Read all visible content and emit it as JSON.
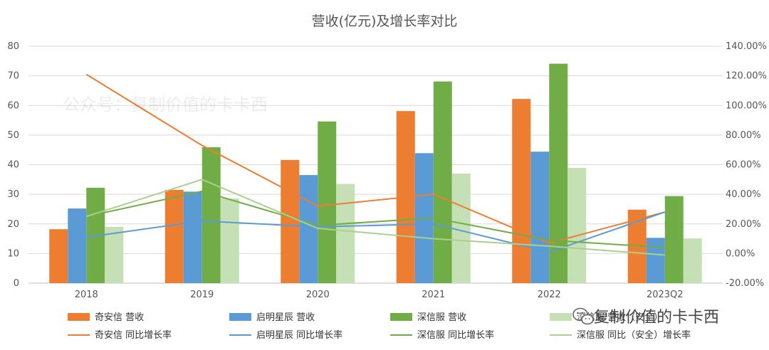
{
  "chart_data": {
    "type": "bar",
    "title": "营收(亿元)及增长率对比",
    "categories": [
      "2018",
      "2019",
      "2020",
      "2021",
      "2022",
      "2023Q2"
    ],
    "ylim": [
      0,
      80
    ],
    "yticks": [
      0,
      10,
      20,
      30,
      40,
      50,
      60,
      70,
      80
    ],
    "y2lim": [
      -0.2,
      1.4
    ],
    "y2ticks": [
      "-20.00%",
      "0.00%",
      "20.00%",
      "40.00%",
      "60.00%",
      "80.00%",
      "100.00%",
      "120.00%",
      "140.00%"
    ],
    "grid": true,
    "legend_position": "bottom",
    "bar_series": [
      {
        "name": "奇安信 营收",
        "color": "#ED7D31",
        "values": [
          18.2,
          31.5,
          41.6,
          58.1,
          62.2,
          24.8
        ]
      },
      {
        "name": "启明星辰 营收",
        "color": "#5B9BD5",
        "values": [
          25.2,
          30.9,
          36.5,
          43.9,
          44.4,
          15.3
        ]
      },
      {
        "name": "深信服 营收",
        "color": "#70AD47",
        "values": [
          32.2,
          45.9,
          54.6,
          68.1,
          74.1,
          29.4
        ]
      },
      {
        "name": "深信服 营收（安全）",
        "color": "#C5E0B4",
        "values": [
          19.0,
          28.6,
          33.5,
          37.0,
          38.9,
          15.1
        ]
      }
    ],
    "line_series": [
      {
        "name": "奇安信 同比增长率",
        "color": "#ED7D31",
        "values": [
          1.21,
          0.73,
          0.32,
          0.4,
          0.07,
          0.28
        ]
      },
      {
        "name": "启明星辰 同比增长率",
        "color": "#5B9BD5",
        "values": [
          0.11,
          0.22,
          0.18,
          0.2,
          0.01,
          0.28
        ]
      },
      {
        "name": "深信服 同比增长率",
        "color": "#70AD47",
        "values": [
          0.25,
          0.42,
          0.19,
          0.24,
          0.09,
          0.04
        ]
      },
      {
        "name": "深信服 同比（安全）增长率",
        "color": "#A9D18E",
        "values": [
          0.25,
          0.5,
          0.17,
          0.1,
          0.05,
          -0.01
        ]
      }
    ]
  },
  "watermark": "公众号：复制价值的卡卡西",
  "brand": {
    "icon": "wechat-icon",
    "text": "复制价值的卡卡西"
  }
}
